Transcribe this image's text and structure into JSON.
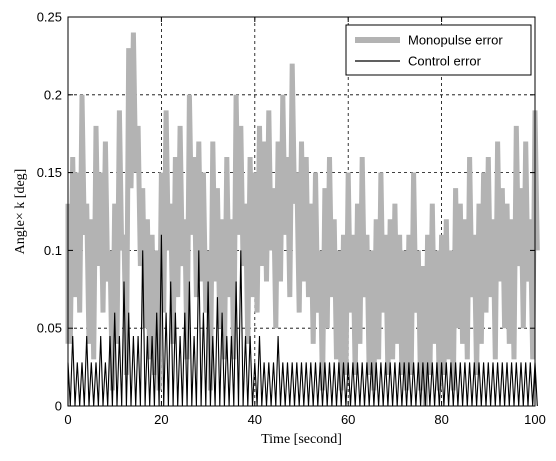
{
  "chart_data": {
    "type": "line",
    "title": "",
    "xlabel": "Time [second]",
    "ylabel": "Angle× k [deg]",
    "xlim": [
      0,
      100
    ],
    "ylim": [
      0,
      0.25
    ],
    "xticks": [
      "0",
      "20",
      "40",
      "60",
      "80",
      "100"
    ],
    "yticks": [
      "0",
      "0.05",
      "0.1",
      "0.15",
      "0.2",
      "0.25"
    ],
    "grid": true,
    "legend_position": "top-right",
    "series": [
      {
        "name": "Monopulse error",
        "color": "#b3b3b3",
        "style": "thick line",
        "x": [
          0,
          1,
          2,
          3,
          4,
          5,
          6,
          7,
          8,
          9,
          10,
          11,
          12,
          13,
          14,
          15,
          16,
          17,
          18,
          19,
          20,
          21,
          22,
          23,
          24,
          25,
          26,
          27,
          28,
          29,
          30,
          31,
          32,
          33,
          34,
          35,
          36,
          37,
          38,
          39,
          40,
          41,
          42,
          43,
          44,
          45,
          46,
          47,
          48,
          49,
          50,
          51,
          52,
          53,
          54,
          55,
          56,
          57,
          58,
          59,
          60,
          61,
          62,
          63,
          64,
          65,
          66,
          67,
          68,
          69,
          70,
          71,
          72,
          73,
          74,
          75,
          76,
          77,
          78,
          79,
          80,
          81,
          82,
          83,
          84,
          85,
          86,
          87,
          88,
          89,
          90,
          91,
          92,
          93,
          94,
          95,
          96,
          97,
          98,
          99,
          100
        ],
        "values": [
          0.13,
          0.16,
          0.15,
          0.2,
          0.13,
          0.12,
          0.18,
          0.15,
          0.17,
          0.1,
          0.13,
          0.19,
          0.11,
          0.23,
          0.24,
          0.18,
          0.14,
          0.12,
          0.11,
          0.1,
          0.15,
          0.19,
          0.13,
          0.16,
          0.18,
          0.12,
          0.2,
          0.16,
          0.17,
          0.15,
          0.1,
          0.17,
          0.14,
          0.12,
          0.16,
          0.12,
          0.2,
          0.18,
          0.13,
          0.16,
          0.15,
          0.18,
          0.17,
          0.19,
          0.14,
          0.17,
          0.2,
          0.16,
          0.22,
          0.15,
          0.17,
          0.16,
          0.13,
          0.15,
          0.1,
          0.14,
          0.16,
          0.12,
          0.1,
          0.11,
          0.15,
          0.11,
          0.13,
          0.16,
          0.11,
          0.1,
          0.12,
          0.15,
          0.11,
          0.12,
          0.13,
          0.11,
          0.1,
          0.11,
          0.15,
          0.1,
          0.09,
          0.11,
          0.13,
          0.1,
          0.11,
          0.12,
          0.1,
          0.14,
          0.13,
          0.12,
          0.16,
          0.11,
          0.13,
          0.15,
          0.16,
          0.12,
          0.17,
          0.14,
          0.13,
          0.12,
          0.18,
          0.14,
          0.17,
          0.12,
          0.19
        ]
      },
      {
        "name": "Control error",
        "color": "#000000",
        "style": "thin line",
        "x": [
          0,
          1,
          2,
          3,
          4,
          5,
          6,
          7,
          8,
          9,
          10,
          11,
          12,
          13,
          14,
          15,
          16,
          17,
          18,
          19,
          20,
          21,
          22,
          23,
          24,
          25,
          26,
          27,
          28,
          29,
          30,
          31,
          32,
          33,
          34,
          35,
          36,
          37,
          38,
          39,
          40,
          41,
          42,
          43,
          44,
          45,
          46,
          47,
          48,
          49,
          50,
          51,
          52,
          53,
          54,
          55,
          56,
          57,
          58,
          59,
          60,
          61,
          62,
          63,
          64,
          65,
          66,
          67,
          68,
          69,
          70,
          71,
          72,
          73,
          74,
          75,
          76,
          77,
          78,
          79,
          80,
          81,
          82,
          83,
          84,
          85,
          86,
          87,
          88,
          89,
          90,
          91,
          92,
          93,
          94,
          95,
          96,
          97,
          98,
          99,
          100
        ],
        "values": [
          0.028,
          0.045,
          0.028,
          0.028,
          0.045,
          0.028,
          0.028,
          0.045,
          0.028,
          0.045,
          0.06,
          0.045,
          0.08,
          0.06,
          0.045,
          0.045,
          0.1,
          0.045,
          0.045,
          0.06,
          0.11,
          0.06,
          0.08,
          0.06,
          0.045,
          0.06,
          0.08,
          0.045,
          0.1,
          0.06,
          0.08,
          0.045,
          0.07,
          0.06,
          0.045,
          0.045,
          0.08,
          0.1,
          0.045,
          0.045,
          0.028,
          0.045,
          0.028,
          0.028,
          0.028,
          0.045,
          0.028,
          0.028,
          0.028,
          0.028,
          0.028,
          0.028,
          0.028,
          0.028,
          0.028,
          0.028,
          0.028,
          0.028,
          0.028,
          0.028,
          0.028,
          0.028,
          0.028,
          0.028,
          0.028,
          0.028,
          0.028,
          0.028,
          0.028,
          0.028,
          0.028,
          0.028,
          0.028,
          0.028,
          0.028,
          0.028,
          0.028,
          0.028,
          0.028,
          0.028,
          0.028,
          0.028,
          0.028,
          0.028,
          0.028,
          0.028,
          0.028,
          0.028,
          0.028,
          0.028,
          0.028,
          0.028,
          0.028,
          0.028,
          0.028,
          0.028,
          0.028,
          0.028,
          0.028,
          0.028,
          0.028
        ]
      }
    ]
  }
}
